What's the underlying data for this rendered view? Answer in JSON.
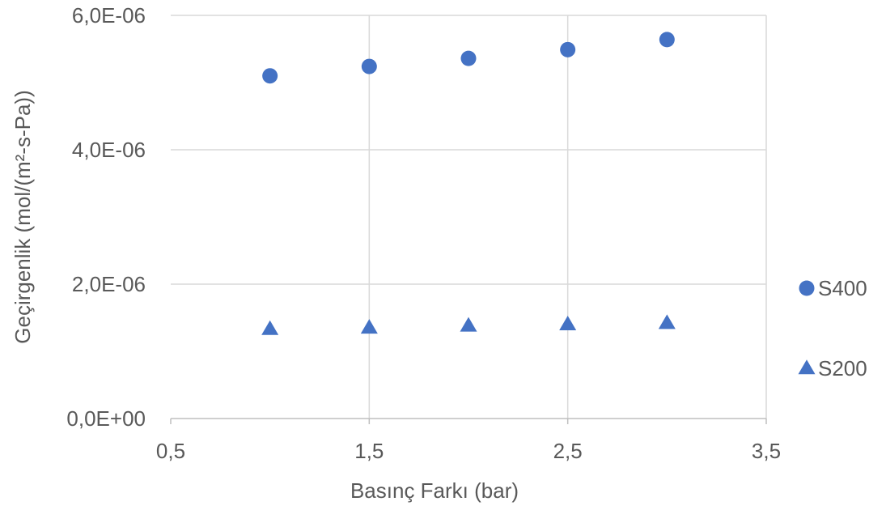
{
  "chart_data": {
    "type": "scatter",
    "xlabel": "Basınç Farkı (bar)",
    "ylabel": "Geçirgenlik (mol/(m²-s-Pa))",
    "xlim": [
      0.5,
      3.5
    ],
    "ylim": [
      0,
      6e-06
    ],
    "xticks": [
      0.5,
      1.5,
      2.5,
      3.5
    ],
    "xtick_labels": [
      "0,5",
      "1,5",
      "2,5",
      "3,5"
    ],
    "yticks": [
      0,
      2e-06,
      4e-06,
      6e-06
    ],
    "ytick_labels": [
      "0,0E+00",
      "2,0E-06",
      "4,0E-06",
      "6,0E-06"
    ],
    "grid": true,
    "legend_position": "right",
    "series": [
      {
        "name": "S400",
        "marker": "circle",
        "color": "#4472C4",
        "x": [
          1.0,
          1.5,
          2.0,
          2.5,
          3.0
        ],
        "y": [
          5.1e-06,
          5.24e-06,
          5.36e-06,
          5.49e-06,
          5.64e-06
        ]
      },
      {
        "name": "S200",
        "marker": "triangle",
        "color": "#4472C4",
        "x": [
          1.0,
          1.5,
          2.0,
          2.5,
          3.0
        ],
        "y": [
          1.33e-06,
          1.35e-06,
          1.38e-06,
          1.4e-06,
          1.42e-06
        ]
      }
    ]
  }
}
